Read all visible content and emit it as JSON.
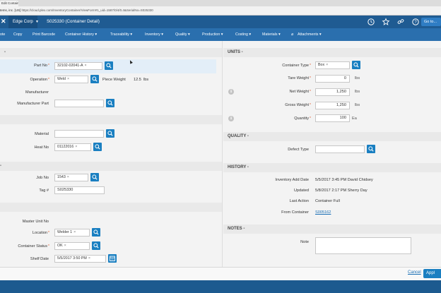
{
  "browser": {
    "tab_title": "Edit Contain",
    "url_prefix": "tems, inc. [US]",
    "url": "https://cloud.plex.com/InventoryContainer/ViewForm#1_uid=1587/0/4/0.4&SerialNo=S025330"
  },
  "header": {
    "company": "Edge Corp",
    "title": "S025330 (Container Detail)",
    "goto_label": "Go to..."
  },
  "toolbar": {
    "items": [
      "ote",
      "Copy",
      "Print Barcode",
      "Container History ▾",
      "Traceability ▾",
      "Inventory ▾",
      "Quality ▾",
      "Production ▾",
      "Costing ▾",
      "Materials ▾",
      "Attachments ▾"
    ]
  },
  "left": {
    "part_no_label": "Part No",
    "part_no_value": "32102-02041-A",
    "operation_label": "Operation",
    "operation_value": "Weld",
    "piece_weight_label": "Piece Weight",
    "piece_weight_value": "12.5",
    "piece_weight_unit": "lbs",
    "manufacturer_label": "Manufacturer",
    "manufacturer_part_label": "Manufacturer Part",
    "material_label": "Material",
    "heat_no_label": "Heat No",
    "heat_no_value": "01122016",
    "job_no_label": "Job No",
    "job_no_value": "1543",
    "tag_label": "Tag #",
    "tag_value": "S025330",
    "master_unit_label": "Master Unit No",
    "location_label": "Location",
    "location_value": "Welder 1",
    "container_status_label": "Container Status",
    "container_status_value": "OK",
    "shelf_date_label": "Shelf Date",
    "shelf_date_value": "5/5/2017 3:50 PM"
  },
  "units": {
    "section_label": "UNITS -",
    "container_type_label": "Container Type",
    "container_type_value": "Box",
    "tare_weight_label": "Tare Weight",
    "tare_weight_value": "0",
    "net_weight_label": "Net Weight",
    "net_weight_value": "1,250",
    "gross_weight_label": "Gross Weight",
    "gross_weight_value": "1,250",
    "weight_unit": "lbs",
    "quantity_label": "Quantity",
    "quantity_value": "100",
    "quantity_unit": "Ea"
  },
  "quality": {
    "section_label": "QUALITY -",
    "defect_type_label": "Defect Type"
  },
  "history": {
    "section_label": "HISTORY -",
    "add_date_label": "Inventory Add Date",
    "add_date_value": "5/5/2017 3:45 PM David Chidsey",
    "updated_label": "Updated",
    "updated_value": "5/8/2017 2:17 PM Sherry Day",
    "last_action_label": "Last Action",
    "last_action_value": "Container Full",
    "from_container_label": "From Container",
    "from_container_value": "S005162"
  },
  "notes": {
    "section_label": "NOTES -",
    "note_label": "Note"
  },
  "footer": {
    "cancel_label": "Cancel",
    "apply_label": "Appl"
  },
  "colors": {
    "appbar": "#1f5b92",
    "toolbar": "#2a6fae",
    "button": "#1a7fc1",
    "required": "#e15a2b"
  }
}
